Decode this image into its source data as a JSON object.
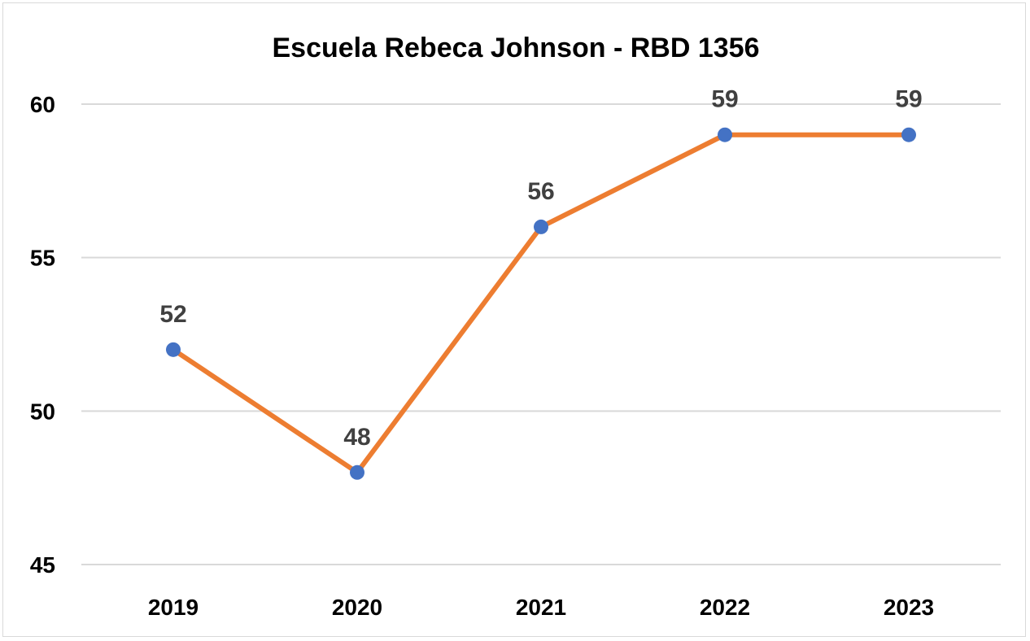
{
  "chart_data": {
    "type": "line",
    "title": "Escuela Rebeca Johnson - RBD 1356",
    "xlabel": "",
    "ylabel": "",
    "categories": [
      "2019",
      "2020",
      "2021",
      "2022",
      "2023"
    ],
    "series": [
      {
        "values": [
          52,
          48,
          56,
          59,
          59
        ]
      }
    ],
    "ylim": [
      45,
      60
    ],
    "yticks": [
      "45",
      "50",
      "55",
      "60"
    ],
    "grid": true,
    "legend": "none",
    "colors": {
      "line": "#ED7D31",
      "marker": "#4472C4",
      "grid": "#d9d9d9",
      "data_label": "#404040"
    }
  }
}
